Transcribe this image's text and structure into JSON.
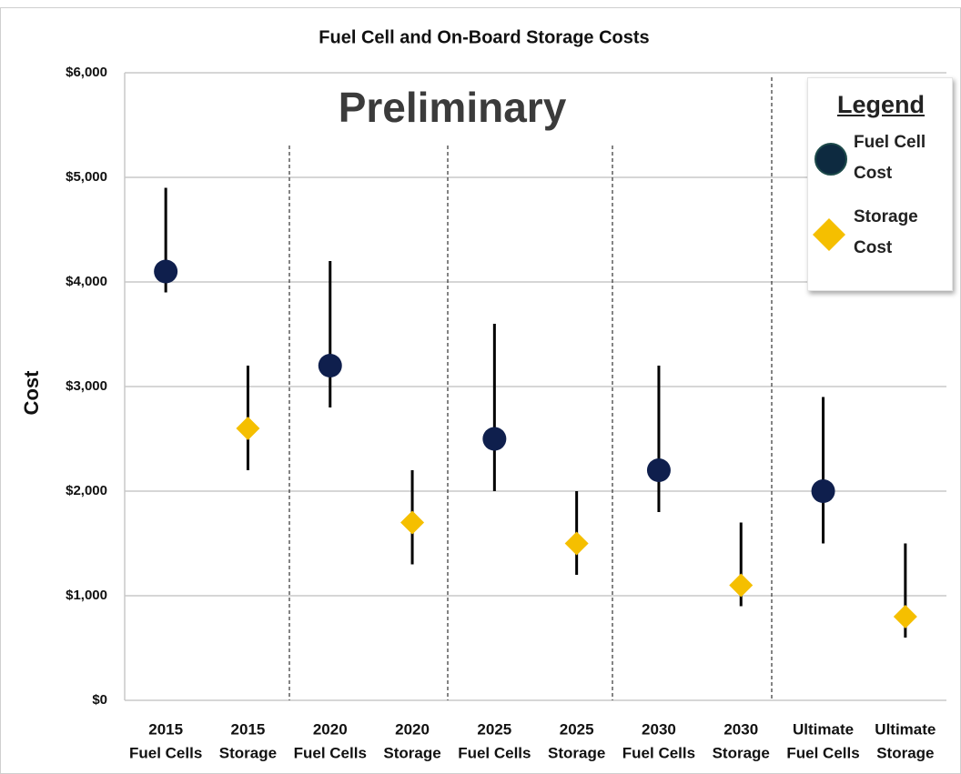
{
  "chart_data": {
    "type": "errorbar",
    "title": "Fuel Cell and On-Board Storage Costs",
    "annotation": "Preliminary",
    "ylabel": "Cost",
    "legend_title": "Legend",
    "categories": [
      [
        "2015",
        "Fuel Cells"
      ],
      [
        "2015",
        "Storage"
      ],
      [
        "2020",
        "Fuel Cells"
      ],
      [
        "2020",
        "Storage"
      ],
      [
        "2025",
        "Fuel Cells"
      ],
      [
        "2025",
        "Storage"
      ],
      [
        "2030",
        "Fuel Cells"
      ],
      [
        "2030",
        "Storage"
      ],
      [
        "Ultimate",
        "Fuel Cells"
      ],
      [
        "Ultimate",
        "Storage"
      ]
    ],
    "series": [
      {
        "name": "Fuel Cell Cost",
        "color": "#0f1f4d",
        "marker": "circle",
        "values": [
          4100,
          null,
          3200,
          null,
          2500,
          null,
          2200,
          null,
          2000,
          null
        ],
        "low": [
          3900,
          null,
          2800,
          null,
          2000,
          null,
          1800,
          null,
          1500,
          null
        ],
        "high": [
          4900,
          null,
          4200,
          null,
          3600,
          null,
          3200,
          null,
          2900,
          null
        ]
      },
      {
        "name": "Storage Cost",
        "color": "#f5bf00",
        "marker": "diamond",
        "values": [
          null,
          2600,
          null,
          1700,
          null,
          1500,
          null,
          1100,
          null,
          800
        ],
        "low": [
          null,
          2200,
          null,
          1300,
          null,
          1200,
          null,
          900,
          null,
          600
        ],
        "high": [
          null,
          3200,
          null,
          2200,
          null,
          2000,
          null,
          1700,
          null,
          1500
        ]
      }
    ],
    "ylim": [
      0,
      6000
    ],
    "yticks": [
      {
        "value": 0,
        "label": "$0"
      },
      {
        "value": 1000,
        "label": "$1,000"
      },
      {
        "value": 2000,
        "label": "$2,000"
      },
      {
        "value": 3000,
        "label": "$3,000"
      },
      {
        "value": 4000,
        "label": "$4,000"
      },
      {
        "value": 5000,
        "label": "$5,000"
      },
      {
        "value": 6000,
        "label": "$6,000"
      }
    ],
    "grid": true
  }
}
